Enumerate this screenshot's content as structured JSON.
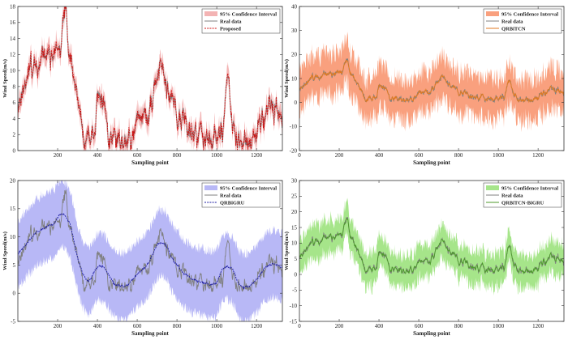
{
  "chart_data": [
    {
      "type": "line",
      "panel": "top-left",
      "xlabel": "Sampling point",
      "ylabel": "Wind Speed(m/s)",
      "xlim": [
        0,
        1330
      ],
      "ylim": [
        0,
        18
      ],
      "xticks": [
        200,
        400,
        600,
        800,
        1000,
        1200
      ],
      "yticks": [
        0,
        2,
        4,
        6,
        8,
        10,
        12,
        14,
        16,
        18
      ],
      "legend_position": "top-right",
      "series": [
        {
          "name": "95% Confidence Interval",
          "kind": "band",
          "color": "#f3b3b3",
          "noise": 0.9,
          "spread": 0.6
        },
        {
          "name": "Real data",
          "kind": "real",
          "color": "#808080"
        },
        {
          "name": "Proposed",
          "kind": "forecast",
          "color": "#d01010",
          "dash": "2,1.2",
          "noise": 0.35,
          "smooth": 0
        }
      ]
    },
    {
      "type": "line",
      "panel": "top-right",
      "xlabel": "Sampling point",
      "ylabel": "Wind Speed(m/s)",
      "xlim": [
        0,
        1330
      ],
      "ylim": [
        -20,
        40
      ],
      "xticks": [
        0,
        200,
        400,
        600,
        800,
        1000,
        1200
      ],
      "yticks": [
        -20,
        -10,
        0,
        10,
        20,
        30,
        40
      ],
      "legend_position": "top-right",
      "series": [
        {
          "name": "95% Confidence Interval",
          "kind": "band",
          "color": "#f9a07e",
          "noise": 9,
          "spread": 4
        },
        {
          "name": "Real data",
          "kind": "real",
          "color": "#808080"
        },
        {
          "name": "QRBiTCN",
          "kind": "forecast",
          "color": "#e07a20",
          "dash": "",
          "noise": 0.5,
          "smooth": 4
        }
      ]
    },
    {
      "type": "line",
      "panel": "bottom-left",
      "xlabel": "Sampling point",
      "ylabel": "Wind Speed(m/s)",
      "xlim": [
        0,
        1330
      ],
      "ylim": [
        -5,
        20
      ],
      "xticks": [
        200,
        400,
        600,
        800,
        1000,
        1200
      ],
      "yticks": [
        -5,
        0,
        5,
        10,
        15,
        20
      ],
      "legend_position": "top-right",
      "series": [
        {
          "name": "95% Confidence Interval",
          "kind": "band",
          "color": "#b8b8f6",
          "noise": 1.8,
          "spread": 5
        },
        {
          "name": "Real data",
          "kind": "real",
          "color": "#808080"
        },
        {
          "name": "QRBiGRU",
          "kind": "forecast",
          "color": "#1a1aa0",
          "dash": "2,1.2",
          "noise": 0.15,
          "smooth": 40
        }
      ]
    },
    {
      "type": "line",
      "panel": "bottom-right",
      "xlabel": "Sampling point",
      "ylabel": "Wind Speed(m/s)",
      "xlim": [
        0,
        1330
      ],
      "ylim": [
        -15,
        30
      ],
      "xticks": [
        0,
        200,
        400,
        600,
        800,
        1000,
        1200
      ],
      "yticks": [
        -15,
        -10,
        -5,
        0,
        5,
        10,
        15,
        20,
        25,
        30
      ],
      "legend_position": "top-right",
      "series": [
        {
          "name": "95% Confidence Interval",
          "kind": "band",
          "color": "#a6e58a",
          "noise": 4.5,
          "spread": 3
        },
        {
          "name": "Real data",
          "kind": "real",
          "color": "#808080"
        },
        {
          "name": "QRBiTCN-BiGRU",
          "kind": "forecast",
          "color": "#4c9a2a",
          "dash": "",
          "noise": 0.3,
          "smooth": 3
        }
      ]
    }
  ],
  "real_data_anchors": {
    "x": [
      0,
      30,
      60,
      100,
      150,
      200,
      240,
      260,
      290,
      320,
      340,
      380,
      410,
      430,
      460,
      500,
      540,
      580,
      620,
      660,
      700,
      720,
      750,
      780,
      800,
      840,
      880,
      940,
      990,
      1030,
      1050,
      1080,
      1100,
      1150,
      1190,
      1230,
      1270,
      1300,
      1330
    ],
    "y": [
      6,
      8,
      10,
      11,
      12,
      12.5,
      16.5,
      12,
      8,
      4,
      1.5,
      2,
      6.5,
      6.5,
      2.5,
      1.5,
      1.5,
      2,
      5,
      4,
      9,
      11,
      8,
      7,
      4,
      4,
      2.5,
      1.5,
      1,
      2.5,
      9.5,
      3,
      1,
      1.5,
      1.5,
      4,
      6,
      4,
      5
    ]
  }
}
